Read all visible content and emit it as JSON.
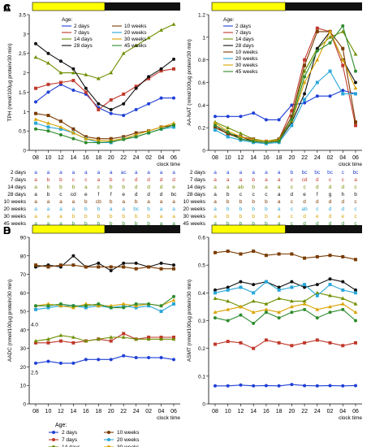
{
  "chart_data": [
    {
      "panel": "A",
      "type": "line",
      "ylabel": "TPH (nmol/100µg protein/30 min)",
      "xlabel": "clock time",
      "x": [
        "08",
        "10",
        "12",
        "14",
        "16",
        "18",
        "20",
        "22",
        "24",
        "02",
        "04",
        "06"
      ],
      "ylim": [
        0,
        3.5
      ],
      "yticks": [
        0,
        0.5,
        1.0,
        1.5,
        2.0,
        2.5,
        3.0,
        3.5
      ],
      "legend_title": "Age:",
      "series": [
        {
          "name": "2 days",
          "color": "#1f3fd6",
          "values": [
            1.25,
            1.5,
            1.7,
            1.55,
            1.45,
            1.1,
            0.95,
            0.9,
            1.05,
            1.2,
            1.35,
            1.35
          ]
        },
        {
          "name": "7 days",
          "color": "#c0392b",
          "values": [
            1.6,
            1.7,
            1.75,
            1.8,
            1.5,
            1.05,
            1.3,
            1.45,
            1.65,
            1.85,
            2.05,
            2.1
          ]
        },
        {
          "name": "14 days",
          "color": "#6e8f00",
          "values": [
            2.4,
            2.25,
            2.0,
            2.0,
            1.95,
            1.85,
            2.0,
            2.5,
            2.7,
            2.9,
            3.1,
            3.25
          ]
        },
        {
          "name": "28 days",
          "color": "#111111",
          "values": [
            2.75,
            2.5,
            2.3,
            2.1,
            1.6,
            1.2,
            1.05,
            1.2,
            1.6,
            1.9,
            2.1,
            2.35
          ]
        },
        {
          "name": "10 weeks",
          "color": "#7a3b00",
          "values": [
            0.95,
            0.9,
            0.75,
            0.55,
            0.35,
            0.3,
            0.3,
            0.35,
            0.45,
            0.5,
            0.6,
            0.65
          ]
        },
        {
          "name": "20 weeks",
          "color": "#2aa7d9",
          "values": [
            0.7,
            0.6,
            0.55,
            0.45,
            0.3,
            0.2,
            0.2,
            0.3,
            0.35,
            0.45,
            0.55,
            0.6
          ]
        },
        {
          "name": "30 weeks",
          "color": "#d9a300",
          "values": [
            0.8,
            0.7,
            0.6,
            0.45,
            0.3,
            0.25,
            0.25,
            0.3,
            0.4,
            0.5,
            0.6,
            0.7
          ]
        },
        {
          "name": "45 weeks",
          "color": "#2e8b2e",
          "values": [
            0.55,
            0.5,
            0.4,
            0.3,
            0.2,
            0.2,
            0.22,
            0.28,
            0.35,
            0.45,
            0.55,
            0.65
          ]
        }
      ],
      "letter_table": {
        "2 days": [
          "a",
          "a",
          "a",
          "a",
          "a",
          "a",
          "a",
          "ac",
          "a",
          "a",
          "a",
          "a"
        ],
        "7 days": [
          "a",
          "b",
          "b",
          "c",
          "c",
          "a",
          "b",
          "c",
          "d",
          "d",
          "d",
          "d"
        ],
        "14 days": [
          "a",
          "b",
          "b",
          "b",
          "a",
          "c",
          "b",
          "b",
          "d",
          "d",
          "d",
          "e"
        ],
        "28 days": [
          "a",
          "b",
          "c",
          "cd",
          "e",
          "f",
          "f",
          "e",
          "d",
          "d",
          "d",
          "bc"
        ],
        "10 weeks": [
          "a",
          "a",
          "a",
          "a",
          "b",
          "cb",
          "b",
          "a",
          "b",
          "a",
          "a",
          "a"
        ],
        "20 weeks": [
          "a",
          "a",
          "a",
          "a",
          "b",
          "b",
          "a",
          "a",
          "bc",
          "b",
          "a",
          "a"
        ],
        "30 weeks": [
          "a",
          "a",
          "a",
          "b",
          "b",
          "b",
          "b",
          "b",
          "b",
          "b",
          "a",
          "a"
        ],
        "45 weeks": [
          "a",
          "a",
          "a",
          "b",
          "b",
          "b",
          "b",
          "b",
          "b",
          "b",
          "a",
          "a"
        ]
      }
    },
    {
      "panel": "B",
      "type": "line",
      "ylabel": "AADC (nmol/100µg protein/30 min)",
      "xlabel": "clock time",
      "x": [
        "08",
        "10",
        "12",
        "14",
        "16",
        "18",
        "20",
        "22",
        "24",
        "02",
        "04",
        "06"
      ],
      "ylim": [
        0,
        90
      ],
      "yticks": [
        0,
        10,
        20,
        30,
        40,
        50,
        60,
        70,
        80,
        90
      ],
      "axis_break_labels": [
        "4.0",
        "2.5"
      ],
      "series": [
        {
          "name": "2 days",
          "color": "#1f3fd6",
          "values": [
            22,
            23,
            22,
            22,
            24,
            24,
            24,
            26,
            25,
            25,
            25,
            24
          ]
        },
        {
          "name": "7 days",
          "color": "#c0392b",
          "values": [
            33,
            33,
            34,
            33,
            34,
            35,
            34,
            38,
            35,
            36,
            36,
            36
          ]
        },
        {
          "name": "14 days",
          "color": "#6e8f00",
          "values": [
            34,
            35,
            37,
            36,
            34,
            35,
            36,
            36,
            35,
            35,
            35,
            35
          ]
        },
        {
          "name": "28 days",
          "color": "#111111",
          "values": [
            74,
            75,
            74,
            80,
            74,
            76,
            72,
            76,
            76,
            74,
            76,
            75
          ]
        },
        {
          "name": "10 weeks",
          "color": "#7a3b00",
          "values": [
            75,
            74,
            75,
            75,
            74,
            74,
            74,
            74,
            73,
            74,
            73,
            73
          ]
        },
        {
          "name": "20 weeks",
          "color": "#2aa7d9",
          "values": [
            51,
            52,
            53,
            53,
            52,
            53,
            52,
            53,
            52,
            53,
            50,
            54
          ]
        },
        {
          "name": "30 weeks",
          "color": "#d9a300",
          "values": [
            53,
            54,
            53,
            52,
            54,
            53,
            53,
            54,
            53,
            54,
            53,
            56
          ]
        },
        {
          "name": "45 weeks",
          "color": "#2e8b2e",
          "values": [
            53,
            53,
            54,
            53,
            53,
            54,
            52,
            52,
            54,
            54,
            53,
            58
          ]
        }
      ],
      "bottom_legend": {
        "title": "Age:",
        "items": [
          "2 days",
          "10 weeks",
          "7 days",
          "20 weeks",
          "14 days",
          "30 weeks",
          "28 days",
          "45 weeks"
        ]
      }
    },
    {
      "panel": "C",
      "type": "line",
      "ylabel": "AA-NAT (nmol/100µg protein/30 min)",
      "xlabel": "clock time",
      "x": [
        "08",
        "10",
        "12",
        "14",
        "16",
        "18",
        "20",
        "22",
        "24",
        "02",
        "04",
        "06"
      ],
      "ylim": [
        0,
        1.2
      ],
      "yticks": [
        0,
        0.2,
        0.4,
        0.6,
        0.8,
        1.0,
        1.2
      ],
      "legend_title": "Age:",
      "series": [
        {
          "name": "2 days",
          "color": "#1f3fd6",
          "values": [
            0.3,
            0.3,
            0.3,
            0.33,
            0.27,
            0.27,
            0.4,
            0.42,
            0.48,
            0.48,
            0.53,
            0.5
          ]
        },
        {
          "name": "7 days",
          "color": "#c0392b",
          "values": [
            0.22,
            0.14,
            0.12,
            0.1,
            0.08,
            0.1,
            0.35,
            0.8,
            1.08,
            1.05,
            0.75,
            0.22
          ]
        },
        {
          "name": "14 days",
          "color": "#6e8f00",
          "values": [
            0.25,
            0.2,
            0.15,
            0.1,
            0.08,
            0.1,
            0.3,
            0.7,
            0.9,
            1.0,
            1.05,
            0.85
          ]
        },
        {
          "name": "28 days",
          "color": "#111111",
          "values": [
            0.2,
            0.15,
            0.12,
            0.08,
            0.07,
            0.08,
            0.25,
            0.5,
            0.9,
            1.05,
            0.8,
            0.6
          ]
        },
        {
          "name": "10 weeks",
          "color": "#7a3b00",
          "values": [
            0.2,
            0.15,
            0.1,
            0.08,
            0.07,
            0.09,
            0.3,
            0.75,
            1.05,
            1.05,
            0.9,
            0.25
          ]
        },
        {
          "name": "20 weeks",
          "color": "#2aa7d9",
          "values": [
            0.18,
            0.12,
            0.09,
            0.07,
            0.06,
            0.07,
            0.22,
            0.45,
            0.6,
            0.7,
            0.5,
            0.5
          ]
        },
        {
          "name": "30 weeks",
          "color": "#d9a300",
          "values": [
            0.24,
            0.17,
            0.12,
            0.09,
            0.08,
            0.09,
            0.26,
            0.6,
            0.8,
            1.05,
            0.8,
            0.55
          ]
        },
        {
          "name": "45 weeks",
          "color": "#2e8b2e",
          "values": [
            0.22,
            0.16,
            0.1,
            0.08,
            0.07,
            0.08,
            0.27,
            0.65,
            0.88,
            0.95,
            1.1,
            0.7
          ]
        }
      ],
      "letter_table": {
        "2 days": [
          "a",
          "a",
          "a",
          "a",
          "a",
          "a",
          "b",
          "bc",
          "bc",
          "bc",
          "c",
          "bc"
        ],
        "7 days": [
          "a",
          "a",
          "a",
          "b",
          "a",
          "a",
          "c",
          "cd",
          "d",
          "c",
          "c",
          "a"
        ],
        "14 days": [
          "a",
          "a",
          "ab",
          "b",
          "a",
          "a",
          "c",
          "c",
          "d",
          "d",
          "d",
          "c"
        ],
        "28 days": [
          "a",
          "b",
          "c",
          "c",
          "c",
          "a",
          "d",
          "e",
          "f",
          "g",
          "h",
          "b"
        ],
        "10 weeks": [
          "a",
          "b",
          "b",
          "b",
          "b",
          "a",
          "c",
          "d",
          "d",
          "d",
          "d",
          "c"
        ],
        "20 weeks": [
          "a",
          "b",
          "b",
          "b",
          "b",
          "a",
          "c",
          "ab",
          "c",
          "d",
          "d",
          "c"
        ],
        "30 weeks": [
          "a",
          "b",
          "b",
          "b",
          "b",
          "a",
          "c",
          "d",
          "e",
          "d",
          "e",
          "c"
        ],
        "45 weeks": [
          "a",
          "b",
          "b",
          "b",
          "b",
          "a",
          "c",
          "d",
          "d",
          "d",
          "d",
          "c"
        ]
      }
    },
    {
      "panel": "D",
      "type": "line",
      "ylabel": "ASMT (nmol/100µg protein/30 min)",
      "xlabel": "clock time",
      "x": [
        "08",
        "10",
        "12",
        "14",
        "16",
        "18",
        "20",
        "22",
        "24",
        "02",
        "04",
        "06"
      ],
      "ylim": [
        0,
        0.6
      ],
      "yticks": [
        0,
        0.1,
        0.2,
        0.3,
        0.4,
        0.5,
        0.6
      ],
      "series": [
        {
          "name": "2 days",
          "color": "#1f3fd6",
          "values": [
            0.065,
            0.065,
            0.068,
            0.065,
            0.066,
            0.065,
            0.07,
            0.066,
            0.065,
            0.066,
            0.065,
            0.066
          ]
        },
        {
          "name": "7 days",
          "color": "#c0392b",
          "values": [
            0.215,
            0.225,
            0.22,
            0.2,
            0.23,
            0.22,
            0.21,
            0.22,
            0.23,
            0.22,
            0.21,
            0.22
          ]
        },
        {
          "name": "14 days",
          "color": "#6e8f00",
          "values": [
            0.38,
            0.37,
            0.35,
            0.37,
            0.36,
            0.38,
            0.37,
            0.37,
            0.4,
            0.39,
            0.38,
            0.36
          ]
        },
        {
          "name": "28 days",
          "color": "#111111",
          "values": [
            0.41,
            0.42,
            0.44,
            0.43,
            0.44,
            0.42,
            0.44,
            0.42,
            0.43,
            0.45,
            0.44,
            0.41
          ]
        },
        {
          "name": "10 weeks",
          "color": "#7a3b00",
          "values": [
            0.545,
            0.55,
            0.54,
            0.55,
            0.535,
            0.54,
            0.54,
            0.525,
            0.53,
            0.535,
            0.53,
            0.52
          ]
        },
        {
          "name": "20 weeks",
          "color": "#2aa7d9",
          "values": [
            0.4,
            0.41,
            0.42,
            0.4,
            0.44,
            0.41,
            0.42,
            0.43,
            0.39,
            0.43,
            0.41,
            0.4
          ]
        },
        {
          "name": "30 weeks",
          "color": "#d9a300",
          "values": [
            0.33,
            0.34,
            0.35,
            0.33,
            0.34,
            0.33,
            0.35,
            0.36,
            0.34,
            0.35,
            0.36,
            0.33
          ]
        },
        {
          "name": "45 weeks",
          "color": "#2e8b2e",
          "values": [
            0.31,
            0.3,
            0.32,
            0.29,
            0.33,
            0.31,
            0.33,
            0.34,
            0.31,
            0.33,
            0.34,
            0.3
          ]
        }
      ]
    }
  ],
  "colors": {
    "light_phase": "#ffff00",
    "dark_phase": "#111111"
  }
}
